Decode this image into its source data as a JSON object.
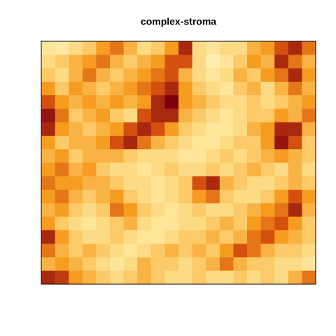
{
  "chart_data": {
    "type": "heatmap",
    "title": "complex-stroma",
    "values": [
      [
        0.2,
        0.15,
        0.3,
        0.4,
        0.6,
        0.7,
        0.5,
        0.3,
        0.4,
        0.6,
        0.9,
        0.3,
        0.2,
        0.3,
        0.3,
        0.5,
        0.6,
        0.8,
        0.9,
        0.7
      ],
      [
        0.3,
        0.4,
        0.5,
        0.6,
        0.7,
        0.5,
        0.4,
        0.5,
        0.6,
        0.8,
        0.8,
        0.3,
        0.1,
        0.2,
        0.4,
        0.6,
        0.5,
        0.9,
        0.7,
        0.5
      ],
      [
        0.4,
        0.3,
        0.5,
        0.7,
        0.5,
        0.4,
        0.5,
        0.6,
        0.7,
        0.8,
        0.5,
        0.3,
        0.2,
        0.3,
        0.5,
        0.4,
        0.6,
        0.7,
        0.9,
        0.6
      ],
      [
        0.6,
        0.4,
        0.6,
        0.5,
        0.4,
        0.5,
        0.6,
        0.7,
        0.8,
        0.9,
        0.6,
        0.4,
        0.3,
        0.2,
        0.4,
        0.5,
        0.3,
        0.5,
        0.7,
        0.5
      ],
      [
        0.8,
        0.6,
        0.5,
        0.6,
        0.5,
        0.6,
        0.5,
        0.6,
        0.9,
        1.0,
        0.6,
        0.5,
        0.4,
        0.3,
        0.3,
        0.4,
        0.3,
        0.4,
        0.5,
        0.6
      ],
      [
        0.95,
        0.7,
        0.4,
        0.5,
        0.6,
        0.4,
        0.3,
        0.8,
        0.9,
        0.9,
        0.5,
        0.4,
        0.3,
        0.2,
        0.3,
        0.4,
        0.4,
        0.6,
        0.5,
        0.7
      ],
      [
        0.9,
        0.6,
        0.5,
        0.4,
        0.5,
        0.6,
        0.8,
        0.9,
        0.8,
        0.6,
        0.4,
        0.3,
        0.2,
        0.2,
        0.3,
        0.5,
        0.6,
        0.9,
        0.9,
        0.5
      ],
      [
        0.6,
        0.4,
        0.5,
        0.5,
        0.6,
        0.8,
        0.9,
        0.7,
        0.5,
        0.4,
        0.3,
        0.2,
        0.2,
        0.3,
        0.4,
        0.4,
        0.6,
        0.95,
        0.8,
        0.4
      ],
      [
        0.5,
        0.6,
        0.4,
        0.5,
        0.5,
        0.5,
        0.4,
        0.3,
        0.3,
        0.3,
        0.2,
        0.2,
        0.3,
        0.4,
        0.3,
        0.4,
        0.5,
        0.6,
        0.5,
        0.4
      ],
      [
        0.6,
        0.7,
        0.5,
        0.6,
        0.4,
        0.3,
        0.3,
        0.2,
        0.3,
        0.4,
        0.3,
        0.3,
        0.4,
        0.3,
        0.4,
        0.5,
        0.4,
        0.3,
        0.5,
        0.3
      ],
      [
        0.7,
        0.6,
        0.6,
        0.5,
        0.5,
        0.4,
        0.3,
        0.3,
        0.2,
        0.3,
        0.4,
        0.8,
        0.9,
        0.5,
        0.4,
        0.3,
        0.3,
        0.4,
        0.5,
        0.4
      ],
      [
        0.6,
        0.7,
        0.5,
        0.4,
        0.5,
        0.6,
        0.4,
        0.3,
        0.2,
        0.3,
        0.4,
        0.6,
        0.7,
        0.4,
        0.3,
        0.3,
        0.4,
        0.6,
        0.8,
        0.6
      ],
      [
        0.5,
        0.6,
        0.4,
        0.3,
        0.4,
        0.7,
        0.6,
        0.4,
        0.3,
        0.2,
        0.3,
        0.4,
        0.3,
        0.3,
        0.4,
        0.5,
        0.6,
        0.7,
        0.9,
        0.5
      ],
      [
        0.6,
        0.4,
        0.3,
        0.2,
        0.3,
        0.4,
        0.5,
        0.3,
        0.2,
        0.2,
        0.3,
        0.3,
        0.4,
        0.5,
        0.4,
        0.6,
        0.7,
        0.8,
        0.6,
        0.4
      ],
      [
        0.9,
        0.6,
        0.4,
        0.3,
        0.3,
        0.4,
        0.3,
        0.2,
        0.2,
        0.3,
        0.4,
        0.4,
        0.5,
        0.4,
        0.5,
        0.7,
        0.8,
        0.6,
        0.5,
        0.4
      ],
      [
        0.7,
        0.5,
        0.4,
        0.5,
        0.4,
        0.3,
        0.2,
        0.3,
        0.4,
        0.5,
        0.4,
        0.5,
        0.4,
        0.6,
        0.8,
        0.7,
        0.5,
        0.4,
        0.4,
        0.3
      ],
      [
        0.5,
        0.6,
        0.5,
        0.4,
        0.3,
        0.2,
        0.3,
        0.5,
        0.4,
        0.4,
        0.3,
        0.4,
        0.5,
        0.7,
        0.5,
        0.4,
        0.4,
        0.3,
        0.3,
        0.2
      ],
      [
        0.9,
        0.85,
        0.6,
        0.5,
        0.4,
        0.3,
        0.4,
        0.5,
        0.4,
        0.3,
        0.3,
        0.4,
        0.3,
        0.3,
        0.4,
        0.3,
        0.4,
        0.3,
        0.5,
        0.7
      ]
    ]
  }
}
